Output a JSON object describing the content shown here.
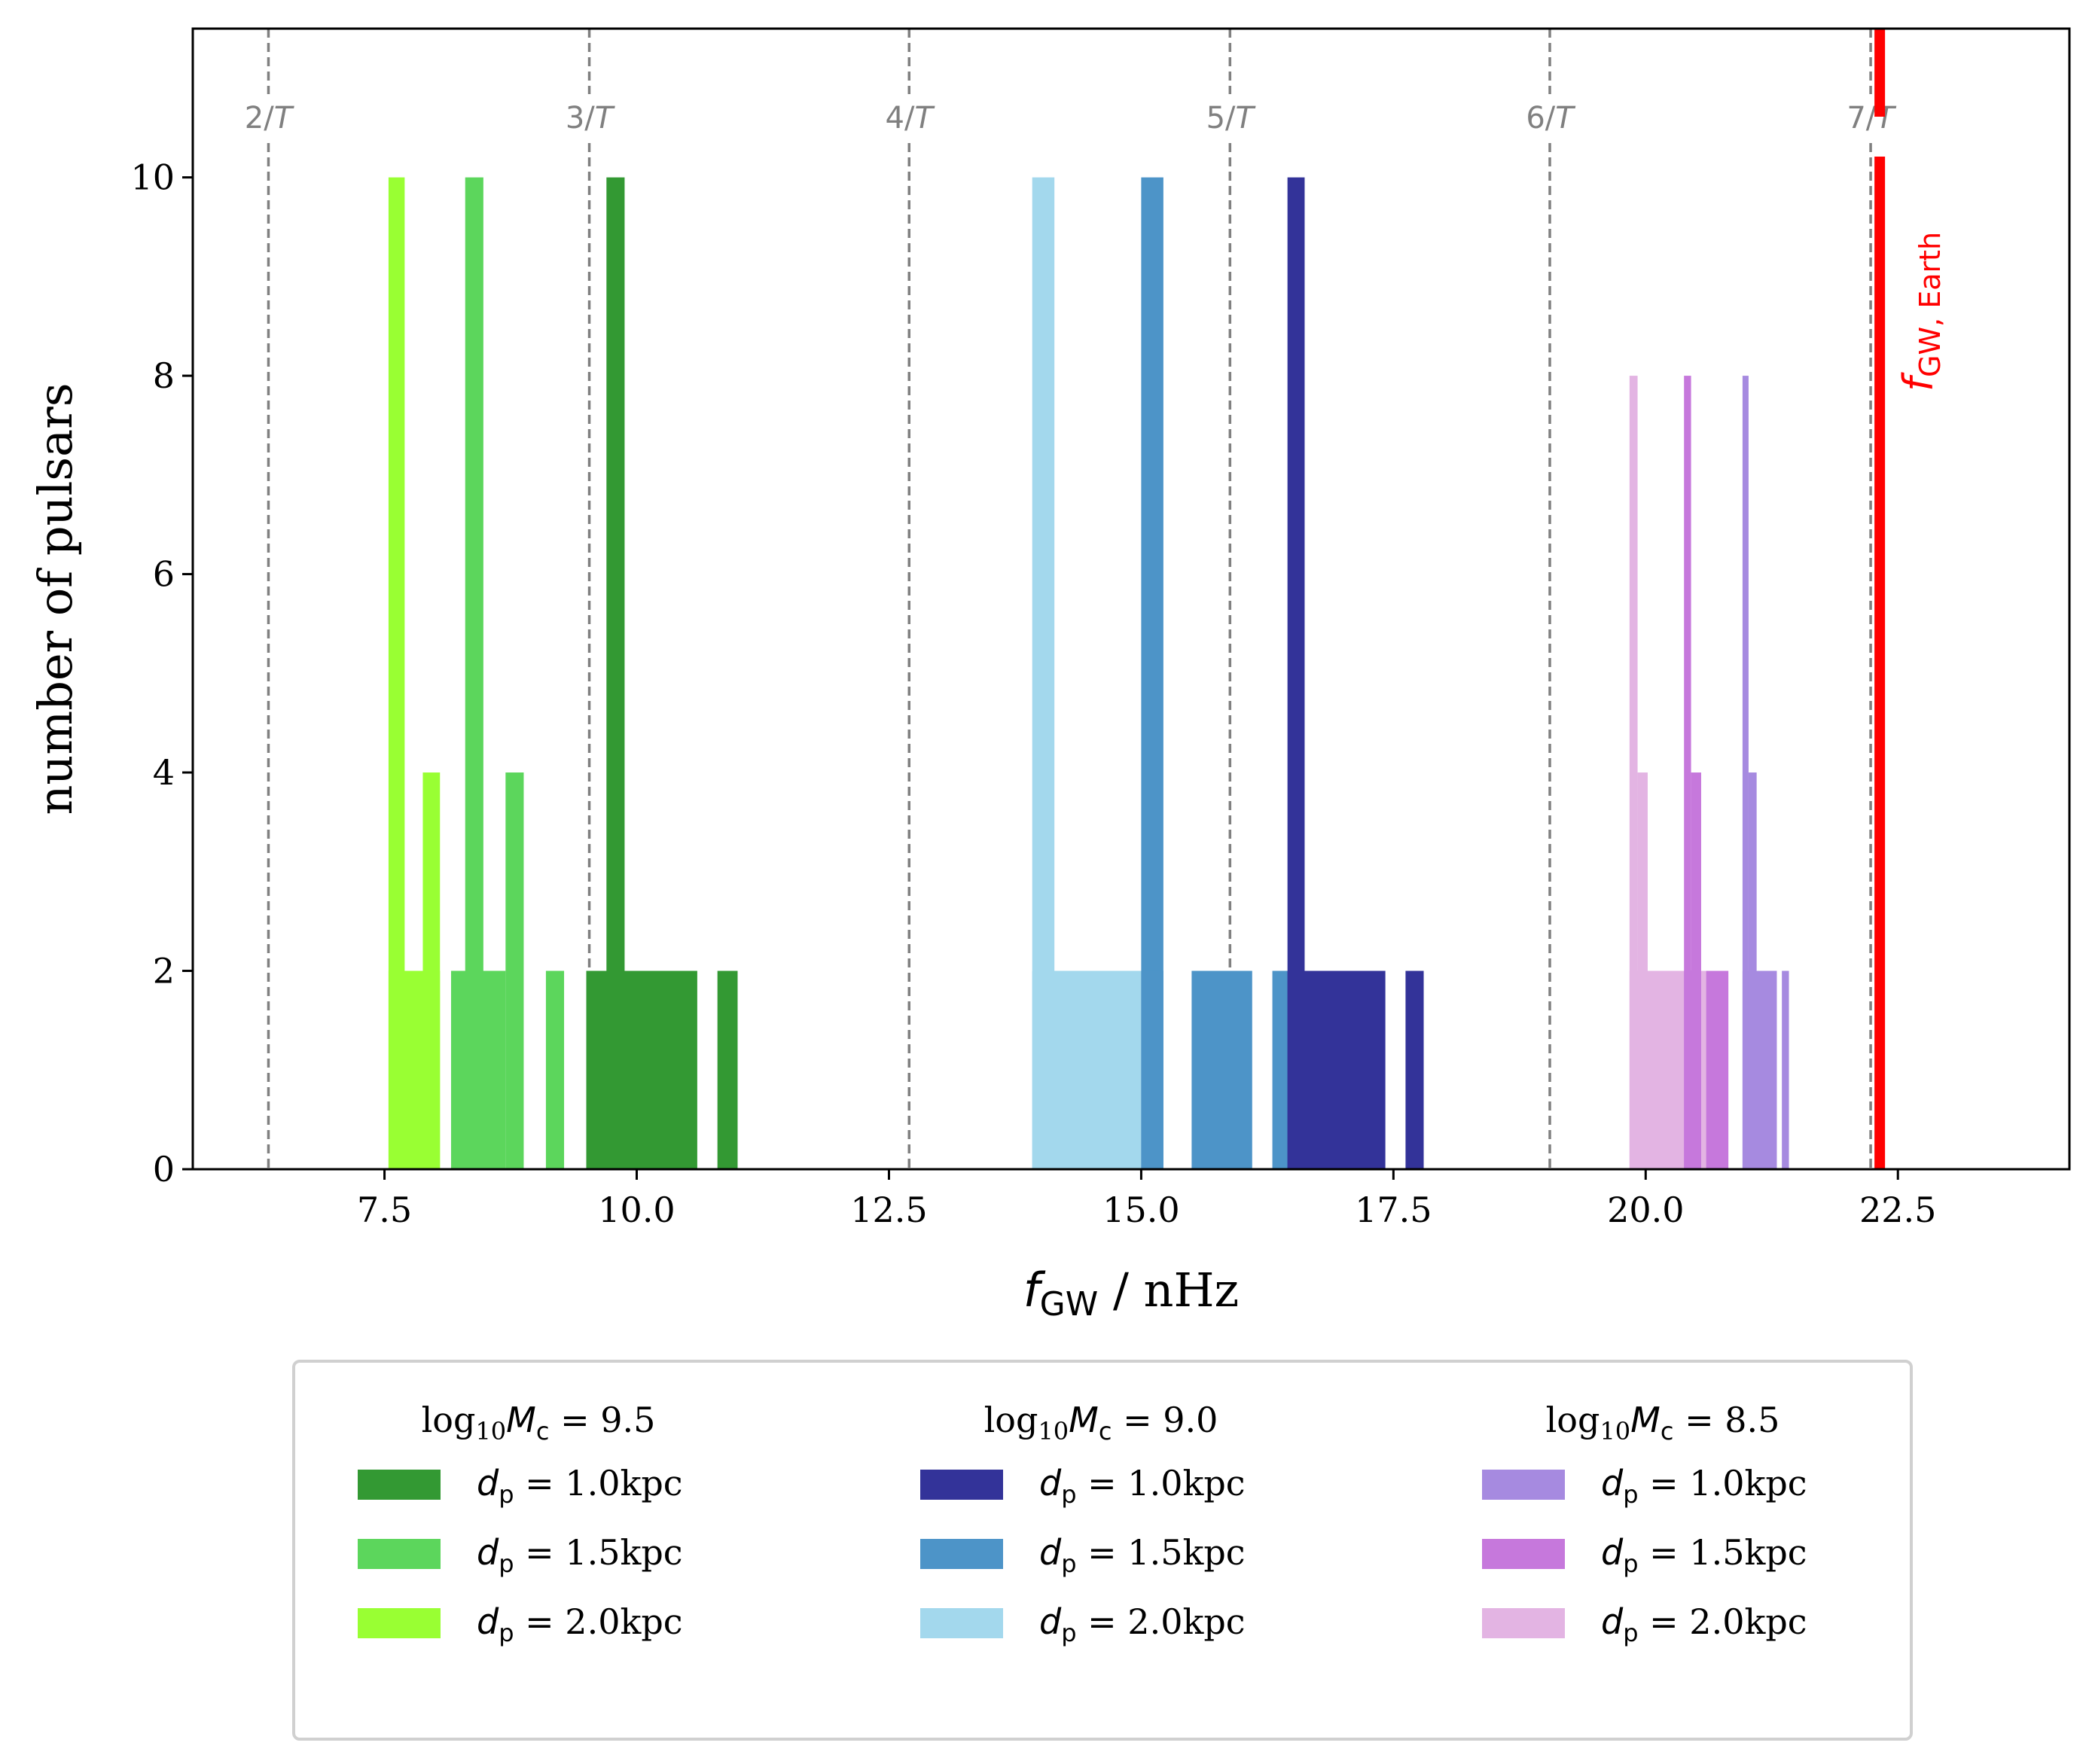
{
  "chart_data": {
    "type": "bar",
    "xlabel": "f_GW / nHz",
    "xlabel_parts": {
      "var": "f",
      "sub": "GW",
      "rest": " / nHz"
    },
    "ylabel": "number of pulsars",
    "xlim": [
      5.6,
      24.2
    ],
    "ylim": [
      0,
      11.5
    ],
    "xticks": [
      7.5,
      10.0,
      12.5,
      15.0,
      17.5,
      20.0,
      22.5
    ],
    "xtick_labels": [
      "7.5",
      "10.0",
      "12.5",
      "15.0",
      "17.5",
      "20.0",
      "22.5"
    ],
    "yticks": [
      0,
      2,
      4,
      6,
      8,
      10
    ],
    "ytick_labels": [
      "0",
      "2",
      "4",
      "6",
      "8",
      "10"
    ],
    "reference_lines": [
      {
        "x": 6.35,
        "label_num": "2/",
        "label_var": "T"
      },
      {
        "x": 9.53,
        "label_num": "3/",
        "label_var": "T"
      },
      {
        "x": 12.7,
        "label_num": "4/",
        "label_var": "T"
      },
      {
        "x": 15.88,
        "label_num": "5/",
        "label_var": "T"
      },
      {
        "x": 19.05,
        "label_num": "6/",
        "label_var": "T"
      },
      {
        "x": 22.23,
        "label_num": "7/",
        "label_var": "T"
      }
    ],
    "earth_line": {
      "x": 22.32,
      "color": "#ff0000",
      "label_var": "f",
      "label_sub": "GW, Earth"
    },
    "legend_placement": "below",
    "groups": [
      {
        "title_pre": "log",
        "title_sub": "10",
        "title_var": "M",
        "title_var_sub": "c",
        "title_post": " = 9.5",
        "series": [
          {
            "name": "d_p = 1.0kpc",
            "label_var": "d",
            "label_sub": "p",
            "label_rest": " = 1.0kpc",
            "color": "#339933",
            "bins": [
              [
                9.7,
                9.88,
                10
              ],
              [
                9.5,
                10.6,
                2
              ],
              [
                10.8,
                11.0,
                2
              ]
            ]
          },
          {
            "name": "d_p = 1.5kpc",
            "label_var": "d",
            "label_sub": "p",
            "label_rest": " = 1.5kpc",
            "color": "#5cd65c",
            "bins": [
              [
                8.3,
                8.48,
                10
              ],
              [
                8.16,
                8.7,
                2
              ],
              [
                8.7,
                8.88,
                4
              ],
              [
                9.1,
                9.28,
                2
              ],
              [
                9.5,
                9.62,
                2
              ]
            ]
          },
          {
            "name": "d_p = 2.0kpc",
            "label_var": "d",
            "label_sub": "p",
            "label_rest": " = 2.0kpc",
            "color": "#99ff33",
            "bins": [
              [
                7.54,
                7.7,
                10
              ],
              [
                7.7,
                7.88,
                2
              ],
              [
                7.88,
                8.05,
                4
              ],
              [
                7.54,
                8.05,
                2
              ],
              [
                8.16,
                8.34,
                2
              ],
              [
                8.5,
                8.68,
                2
              ]
            ]
          }
        ]
      },
      {
        "title_pre": "log",
        "title_sub": "10",
        "title_var": "M",
        "title_var_sub": "c",
        "title_post": " = 9.0",
        "series": [
          {
            "name": "d_p = 1.0kpc",
            "label_var": "d",
            "label_sub": "p",
            "label_rest": " = 1.0kpc",
            "color": "#333399",
            "bins": [
              [
                16.45,
                16.62,
                10
              ],
              [
                16.45,
                17.42,
                2
              ],
              [
                17.62,
                17.8,
                2
              ]
            ]
          },
          {
            "name": "d_p = 1.5kpc",
            "label_var": "d",
            "label_sub": "p",
            "label_rest": " = 1.5kpc",
            "color": "#4d94c8",
            "bins": [
              [
                15.0,
                15.22,
                10
              ],
              [
                15.0,
                15.22,
                2
              ],
              [
                15.5,
                16.1,
                2
              ],
              [
                16.3,
                16.48,
                2
              ]
            ]
          },
          {
            "name": "d_p = 2.0kpc",
            "label_var": "d",
            "label_sub": "p",
            "label_rest": " = 2.0kpc",
            "color": "#a3d8ed",
            "bins": [
              [
                13.92,
                14.14,
                10
              ],
              [
                13.92,
                15.0,
                2
              ],
              [
                15.88,
                15.95,
                2
              ]
            ]
          }
        ]
      },
      {
        "title_pre": "log",
        "title_sub": "10",
        "title_var": "M",
        "title_var_sub": "c",
        "title_post": " = 8.5",
        "series": [
          {
            "name": "d_p = 1.0kpc",
            "label_var": "d",
            "label_sub": "p",
            "label_rest": " = 1.0kpc",
            "color": "#a68ae0",
            "bins": [
              [
                20.96,
                21.02,
                8
              ],
              [
                21.02,
                21.1,
                4
              ],
              [
                20.96,
                21.3,
                2
              ],
              [
                21.35,
                21.42,
                2
              ]
            ]
          },
          {
            "name": "d_p = 1.5kpc",
            "label_var": "d",
            "label_sub": "p",
            "label_rest": " = 1.5kpc",
            "color": "#c678dc",
            "bins": [
              [
                20.38,
                20.45,
                8
              ],
              [
                20.45,
                20.55,
                4
              ],
              [
                20.38,
                20.55,
                2
              ],
              [
                20.6,
                20.82,
                2
              ]
            ]
          },
          {
            "name": "d_p = 2.0kpc",
            "label_var": "d",
            "label_sub": "p",
            "label_rest": " = 2.0kpc",
            "color": "#e3b4e3",
            "bins": [
              [
                19.84,
                19.92,
                8
              ],
              [
                19.92,
                20.02,
                4
              ],
              [
                19.84,
                20.38,
                2
              ],
              [
                20.55,
                20.62,
                2
              ]
            ]
          }
        ]
      }
    ]
  }
}
